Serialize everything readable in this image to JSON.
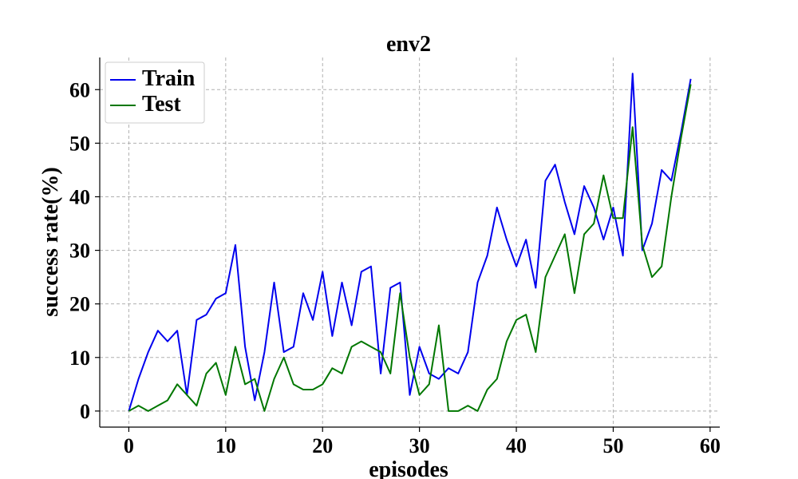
{
  "chart_data": {
    "type": "line",
    "title": "env2",
    "xlabel": "episodes",
    "ylabel": "success rate(%)",
    "xlim": [
      -3,
      61
    ],
    "ylim": [
      -3,
      66
    ],
    "xticks": [
      0,
      10,
      20,
      30,
      40,
      50,
      60
    ],
    "yticks": [
      0,
      10,
      20,
      30,
      40,
      50,
      60
    ],
    "grid": true,
    "legend_position": "top-left",
    "series": [
      {
        "name": "Train",
        "color": "#0000ee",
        "values": [
          0,
          6,
          11,
          15,
          13,
          15,
          3,
          17,
          18,
          21,
          22,
          31,
          12,
          2,
          11,
          24,
          11,
          12,
          22,
          17,
          26,
          14,
          24,
          16,
          26,
          27,
          7,
          23,
          24,
          3,
          12,
          7,
          6,
          8,
          7,
          11,
          24,
          29,
          38,
          32,
          27,
          32,
          23,
          43,
          46,
          39,
          33,
          42,
          38,
          32,
          38,
          29,
          63,
          30,
          35,
          45,
          43,
          52,
          62
        ]
      },
      {
        "name": "Test",
        "color": "#007700",
        "values": [
          0,
          1,
          0,
          1,
          2,
          5,
          3,
          1,
          7,
          9,
          3,
          12,
          5,
          6,
          0,
          6,
          10,
          5,
          4,
          4,
          5,
          8,
          7,
          12,
          13,
          12,
          11,
          7,
          22,
          10,
          3,
          5,
          16,
          0,
          0,
          1,
          0,
          4,
          6,
          13,
          17,
          18,
          11,
          25,
          29,
          33,
          22,
          33,
          35,
          44,
          36,
          36,
          53,
          31,
          25,
          27,
          40,
          51,
          61
        ]
      }
    ]
  }
}
